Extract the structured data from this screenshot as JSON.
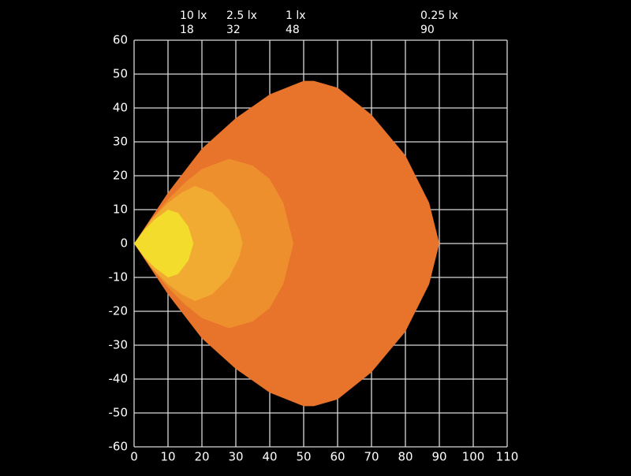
{
  "chart_data": {
    "type": "contour",
    "xlim": [
      0,
      110
    ],
    "ylim": [
      -60,
      60
    ],
    "xticks": [
      0,
      10,
      20,
      30,
      40,
      50,
      60,
      70,
      80,
      90,
      100,
      110
    ],
    "yticks": [
      60,
      50,
      40,
      30,
      20,
      10,
      0,
      -10,
      -20,
      -30,
      -40,
      -50,
      -60
    ],
    "grid": true,
    "series": [
      {
        "name": "0.25 lx",
        "range": 90,
        "color": "#e8732a",
        "x": [
          0,
          10,
          20,
          30,
          40,
          50,
          53,
          60,
          70,
          80,
          87,
          90,
          87,
          80,
          70,
          60,
          53,
          50,
          40,
          30,
          20,
          10
        ],
        "y": [
          0,
          15,
          28,
          37,
          44,
          48,
          48,
          46,
          38,
          26,
          12,
          0,
          -12,
          -26,
          -38,
          -46,
          -48,
          -48,
          -44,
          -37,
          -28,
          -15
        ]
      },
      {
        "name": "1 lx",
        "range": 48,
        "color": "#ee8f2e",
        "x": [
          0,
          5,
          10,
          15,
          20,
          28,
          35,
          40,
          44,
          47,
          44,
          40,
          35,
          28,
          20,
          15,
          10,
          5
        ],
        "y": [
          0,
          7,
          13,
          18,
          22,
          25,
          23,
          19,
          12,
          0,
          -12,
          -19,
          -23,
          -25,
          -22,
          -18,
          -13,
          -7
        ]
      },
      {
        "name": "2.5 lx",
        "range": 32,
        "color": "#f1aa32",
        "x": [
          0,
          5,
          10,
          14,
          18,
          23,
          28,
          31,
          32,
          31,
          28,
          23,
          18,
          14,
          10,
          5
        ],
        "y": [
          0,
          7,
          12,
          15,
          17,
          15,
          10,
          4,
          0,
          -4,
          -10,
          -15,
          -17,
          -15,
          -12,
          -7
        ]
      },
      {
        "name": "10 lx",
        "range": 18,
        "color": "#f4dc2c",
        "x": [
          0,
          3,
          6,
          10,
          13,
          16,
          17.5,
          16,
          13,
          10,
          6,
          3
        ],
        "y": [
          0,
          4,
          7,
          10,
          9,
          5,
          0,
          -5,
          -9,
          -10,
          -7,
          -4
        ]
      }
    ]
  }
}
